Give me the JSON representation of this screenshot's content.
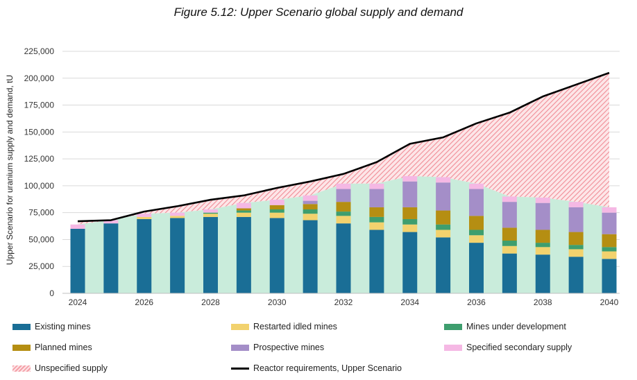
{
  "chart_data": {
    "type": "area",
    "title": "Figure 5.12: Upper Scenario global supply and demand",
    "xlabel": "",
    "ylabel": "Upper  Scenario for uranium supply and demand, tU",
    "x": [
      2024,
      2025,
      2026,
      2027,
      2028,
      2029,
      2030,
      2031,
      2032,
      2033,
      2034,
      2035,
      2036,
      2037,
      2038,
      2039,
      2040
    ],
    "xtick_labels": [
      "2024",
      "2026",
      "2028",
      "2030",
      "2032",
      "2034",
      "2036",
      "2038",
      "2040"
    ],
    "ylim": [
      0,
      225000
    ],
    "yticks": [
      0,
      25000,
      50000,
      75000,
      100000,
      125000,
      150000,
      175000,
      200000,
      225000
    ],
    "ytick_labels": [
      "0",
      "25,000",
      "50,000",
      "75,000",
      "100,000",
      "125,000",
      "150,000",
      "175,000",
      "200,000",
      "225,000"
    ],
    "stacked_bars": [
      {
        "name": "Existing mines",
        "color": "#1a6e96",
        "values": [
          60000,
          65000,
          69000,
          70000,
          71000,
          71000,
          70000,
          68000,
          65000,
          59000,
          57000,
          52000,
          47000,
          37000,
          36000,
          34000,
          32000
        ]
      },
      {
        "name": "Restarted idled mines",
        "color": "#f2d26e",
        "values": [
          0,
          0,
          2000,
          2000,
          3000,
          4000,
          5000,
          6000,
          7000,
          7000,
          7000,
          7000,
          7000,
          7000,
          7000,
          7000,
          7000
        ]
      },
      {
        "name": "Mines under development",
        "color": "#3e9e6e",
        "values": [
          0,
          0,
          0,
          0,
          1000,
          2000,
          3000,
          4000,
          4000,
          5000,
          5000,
          5000,
          5000,
          5000,
          4000,
          4000,
          4000
        ]
      },
      {
        "name": "Planned mines",
        "color": "#b58e12",
        "values": [
          0,
          0,
          0,
          0,
          0,
          2000,
          4000,
          5000,
          9000,
          9000,
          11000,
          13000,
          13000,
          12000,
          12000,
          12000,
          12000
        ]
      },
      {
        "name": "Prospective mines",
        "color": "#a48ec8",
        "values": [
          0,
          0,
          0,
          0,
          0,
          0,
          0,
          3000,
          12000,
          17000,
          24000,
          26000,
          25000,
          24000,
          25000,
          23000,
          20000
        ]
      },
      {
        "name": "Specified secondary supply",
        "color": "#f5b8e4",
        "values": [
          4000,
          3000,
          3000,
          3000,
          3000,
          5000,
          5000,
          5000,
          5000,
          5000,
          5000,
          5000,
          5000,
          5000,
          5000,
          5000,
          5000
        ]
      }
    ],
    "total_supply_area": {
      "name": "Total specified supply",
      "color": "#c9ecdb",
      "values": [
        64000,
        68000,
        74000,
        75000,
        78000,
        84000,
        87000,
        91000,
        102000,
        102000,
        109000,
        108000,
        102000,
        90000,
        89000,
        85000,
        80000
      ]
    },
    "unspecified_supply": {
      "name": "Unspecified supply",
      "color": "#f4a0a8"
    },
    "reactor_requirements": {
      "name": "Reactor requirements, Upper Scenario",
      "color": "#000000",
      "values": [
        67000,
        68000,
        76000,
        81000,
        87000,
        91000,
        98000,
        104000,
        111000,
        122000,
        139000,
        145000,
        158000,
        168000,
        183000,
        194000,
        205000
      ]
    },
    "legend": [
      {
        "label": "Existing mines",
        "kind": "box",
        "color": "#1a6e96"
      },
      {
        "label": "Restarted idled mines",
        "kind": "box",
        "color": "#f2d26e"
      },
      {
        "label": "Mines under development",
        "kind": "box",
        "color": "#3e9e6e"
      },
      {
        "label": "Planned mines",
        "kind": "box",
        "color": "#b58e12"
      },
      {
        "label": "Prospective mines",
        "kind": "box",
        "color": "#a48ec8"
      },
      {
        "label": "Specified secondary supply",
        "kind": "box",
        "color": "#f5b8e4"
      },
      {
        "label": "Unspecified supply",
        "kind": "hatch",
        "color": "#f4a0a8"
      },
      {
        "label": "Reactor requirements, Upper Scenario",
        "kind": "line",
        "color": "#000000"
      }
    ],
    "legend_position": "bottom"
  }
}
